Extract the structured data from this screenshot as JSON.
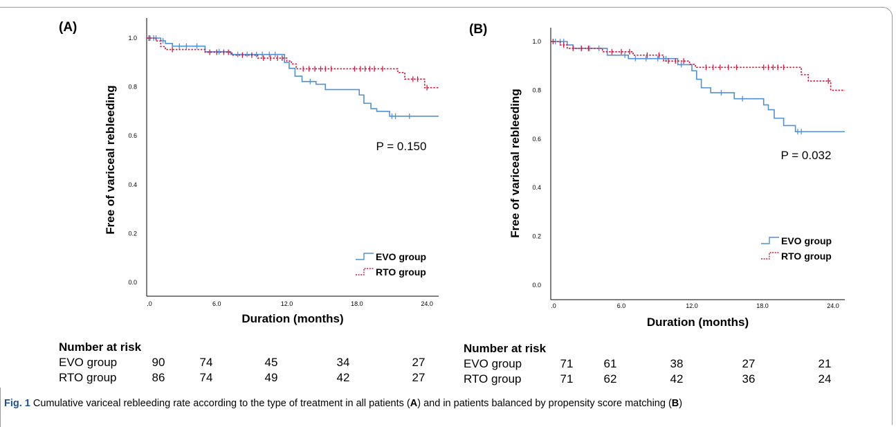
{
  "chart_data": [
    {
      "type": "line",
      "panel_label": "(A)",
      "xlabel": "Duration (months)",
      "ylabel": "Free of variceal rebleeding",
      "xlim": [
        0,
        25
      ],
      "ylim": [
        0,
        1.05
      ],
      "xticks": [
        0,
        6,
        12,
        18,
        24
      ],
      "xtick_labels": [
        ".0",
        "6.0",
        "12.0",
        "18.0",
        "24.0"
      ],
      "yticks": [
        0,
        0.2,
        0.4,
        0.6,
        0.8,
        1.0
      ],
      "ytick_labels": [
        "0.0",
        "0.2",
        "0.4",
        "0.6",
        "0.8",
        "1.0"
      ],
      "annotation": "P = 0.150",
      "legend_position": "bottom-right",
      "grid": false,
      "series": [
        {
          "name": "EVO group",
          "color": "#4f90d6",
          "style": "solid",
          "steps": [
            [
              0,
              1.0
            ],
            [
              1.2,
              0.989
            ],
            [
              1.6,
              0.978
            ],
            [
              2.2,
              0.967
            ],
            [
              5.0,
              0.944
            ],
            [
              7.2,
              0.933
            ],
            [
              11.8,
              0.9
            ],
            [
              12.2,
              0.876
            ],
            [
              12.7,
              0.844
            ],
            [
              13.3,
              0.822
            ],
            [
              14.5,
              0.811
            ],
            [
              15.3,
              0.789
            ],
            [
              18.2,
              0.767
            ],
            [
              18.6,
              0.733
            ],
            [
              19.2,
              0.711
            ],
            [
              19.7,
              0.7
            ],
            [
              20.8,
              0.68
            ],
            [
              25,
              0.68
            ]
          ],
          "censor_marks": [
            [
              0.3,
              1.0
            ],
            [
              0.6,
              1.0
            ],
            [
              0.8,
              1.0
            ],
            [
              1.4,
              0.989
            ],
            [
              2.8,
              0.967
            ],
            [
              3.4,
              0.967
            ],
            [
              4.3,
              0.967
            ],
            [
              6.2,
              0.944
            ],
            [
              7.8,
              0.933
            ],
            [
              8.6,
              0.933
            ],
            [
              9.4,
              0.933
            ],
            [
              9.9,
              0.933
            ],
            [
              10.5,
              0.933
            ],
            [
              11.0,
              0.933
            ],
            [
              14.0,
              0.822
            ],
            [
              21.0,
              0.68
            ],
            [
              21.3,
              0.68
            ],
            [
              22.5,
              0.68
            ]
          ]
        },
        {
          "name": "RTO group",
          "color": "#d4143a",
          "style": "dotted",
          "steps": [
            [
              0,
              1.0
            ],
            [
              0.8,
              0.988
            ],
            [
              1.2,
              0.965
            ],
            [
              1.6,
              0.953
            ],
            [
              5.0,
              0.942
            ],
            [
              7.3,
              0.93
            ],
            [
              9.5,
              0.918
            ],
            [
              12.0,
              0.906
            ],
            [
              12.4,
              0.894
            ],
            [
              12.8,
              0.874
            ],
            [
              21.5,
              0.859
            ],
            [
              22.1,
              0.832
            ],
            [
              23.8,
              0.797
            ],
            [
              25,
              0.797
            ]
          ],
          "censor_marks": [
            [
              0.2,
              1.0
            ],
            [
              2.2,
              0.953
            ],
            [
              5.4,
              0.942
            ],
            [
              6.0,
              0.942
            ],
            [
              6.6,
              0.942
            ],
            [
              7.0,
              0.942
            ],
            [
              8.2,
              0.93
            ],
            [
              9.0,
              0.93
            ],
            [
              10.0,
              0.918
            ],
            [
              10.6,
              0.918
            ],
            [
              11.2,
              0.918
            ],
            [
              11.6,
              0.918
            ],
            [
              13.4,
              0.874
            ],
            [
              13.9,
              0.874
            ],
            [
              14.4,
              0.874
            ],
            [
              14.9,
              0.874
            ],
            [
              15.3,
              0.874
            ],
            [
              15.8,
              0.874
            ],
            [
              17.8,
              0.874
            ],
            [
              18.3,
              0.874
            ],
            [
              18.7,
              0.874
            ],
            [
              19.1,
              0.874
            ],
            [
              19.5,
              0.874
            ],
            [
              20.2,
              0.874
            ],
            [
              22.8,
              0.832
            ],
            [
              23.2,
              0.832
            ],
            [
              24.0,
              0.797
            ]
          ]
        }
      ],
      "risk_table": {
        "title": "Number at risk",
        "rows": [
          {
            "label": "EVO group",
            "values": [
              "90",
              "74",
              "45",
              "34",
              "27"
            ]
          },
          {
            "label": "RTO group",
            "values": [
              "86",
              "74",
              "49",
              "42",
              "27"
            ]
          }
        ]
      }
    },
    {
      "type": "line",
      "panel_label": "(B)",
      "xlabel": "Duration (months)",
      "ylabel": "Free of variceal rebleeding",
      "xlim": [
        0,
        25
      ],
      "ylim": [
        0,
        1.05
      ],
      "xticks": [
        0,
        6,
        12,
        18,
        24
      ],
      "xtick_labels": [
        ".0",
        "6.0",
        "12.0",
        "18.0",
        "24.0"
      ],
      "yticks": [
        0,
        0.2,
        0.4,
        0.6,
        0.8,
        1.0
      ],
      "ytick_labels": [
        "0.0",
        "0.2",
        "0.4",
        "0.6",
        "0.8",
        "1.0"
      ],
      "annotation": "P = 0.032",
      "legend_position": "bottom-right",
      "grid": false,
      "series": [
        {
          "name": "EVO group",
          "color": "#4f90d6",
          "style": "solid",
          "steps": [
            [
              0,
              1.0
            ],
            [
              1.4,
              0.986
            ],
            [
              1.9,
              0.972
            ],
            [
              4.8,
              0.944
            ],
            [
              6.6,
              0.93
            ],
            [
              10.8,
              0.905
            ],
            [
              12.0,
              0.88
            ],
            [
              12.4,
              0.845
            ],
            [
              12.8,
              0.81
            ],
            [
              13.6,
              0.79
            ],
            [
              15.6,
              0.765
            ],
            [
              18.1,
              0.74
            ],
            [
              18.5,
              0.72
            ],
            [
              19.0,
              0.685
            ],
            [
              19.8,
              0.655
            ],
            [
              20.8,
              0.63
            ],
            [
              25,
              0.63
            ]
          ],
          "censor_marks": [
            [
              0.4,
              1.0
            ],
            [
              0.8,
              1.0
            ],
            [
              1.1,
              1.0
            ],
            [
              2.6,
              0.972
            ],
            [
              3.3,
              0.972
            ],
            [
              4.1,
              0.972
            ],
            [
              6.3,
              0.944
            ],
            [
              7.2,
              0.93
            ],
            [
              8.1,
              0.93
            ],
            [
              9.1,
              0.93
            ],
            [
              9.8,
              0.93
            ],
            [
              11.1,
              0.905
            ],
            [
              14.5,
              0.79
            ],
            [
              16.3,
              0.765
            ],
            [
              21.0,
              0.63
            ],
            [
              21.3,
              0.63
            ]
          ]
        },
        {
          "name": "RTO group",
          "color": "#d4143a",
          "style": "dotted",
          "steps": [
            [
              0,
              1.0
            ],
            [
              0.8,
              0.986
            ],
            [
              1.4,
              0.972
            ],
            [
              4.4,
              0.958
            ],
            [
              7.0,
              0.944
            ],
            [
              9.6,
              0.92
            ],
            [
              11.8,
              0.906
            ],
            [
              12.3,
              0.894
            ],
            [
              21.3,
              0.864
            ],
            [
              21.9,
              0.838
            ],
            [
              23.8,
              0.8
            ],
            [
              25,
              0.8
            ]
          ],
          "censor_marks": [
            [
              0.2,
              1.0
            ],
            [
              1.1,
              0.986
            ],
            [
              1.9,
              0.972
            ],
            [
              2.6,
              0.972
            ],
            [
              3.2,
              0.972
            ],
            [
              5.2,
              0.958
            ],
            [
              6.0,
              0.958
            ],
            [
              6.7,
              0.958
            ],
            [
              8.2,
              0.944
            ],
            [
              9.2,
              0.944
            ],
            [
              10.0,
              0.92
            ],
            [
              10.6,
              0.92
            ],
            [
              11.3,
              0.92
            ],
            [
              13.2,
              0.894
            ],
            [
              13.8,
              0.894
            ],
            [
              14.4,
              0.894
            ],
            [
              15.1,
              0.894
            ],
            [
              15.8,
              0.894
            ],
            [
              18.1,
              0.894
            ],
            [
              18.5,
              0.894
            ],
            [
              18.9,
              0.894
            ],
            [
              19.3,
              0.894
            ],
            [
              19.8,
              0.894
            ],
            [
              23.6,
              0.838
            ]
          ]
        }
      ],
      "risk_table": {
        "title": "Number at risk",
        "rows": [
          {
            "label": "EVO group",
            "values": [
              "71",
              "61",
              "38",
              "27",
              "21"
            ]
          },
          {
            "label": "RTO group",
            "values": [
              "71",
              "62",
              "42",
              "36",
              "24"
            ]
          }
        ]
      }
    }
  ],
  "caption": {
    "fig_label": "Fig. 1",
    "text_1": "  Cumulative variceal rebleeding rate according to the type of treatment in all patients (",
    "bold_a": "A",
    "text_2": ") and in patients balanced by propensity score matching (",
    "bold_b": "B",
    "text_3": ")"
  }
}
